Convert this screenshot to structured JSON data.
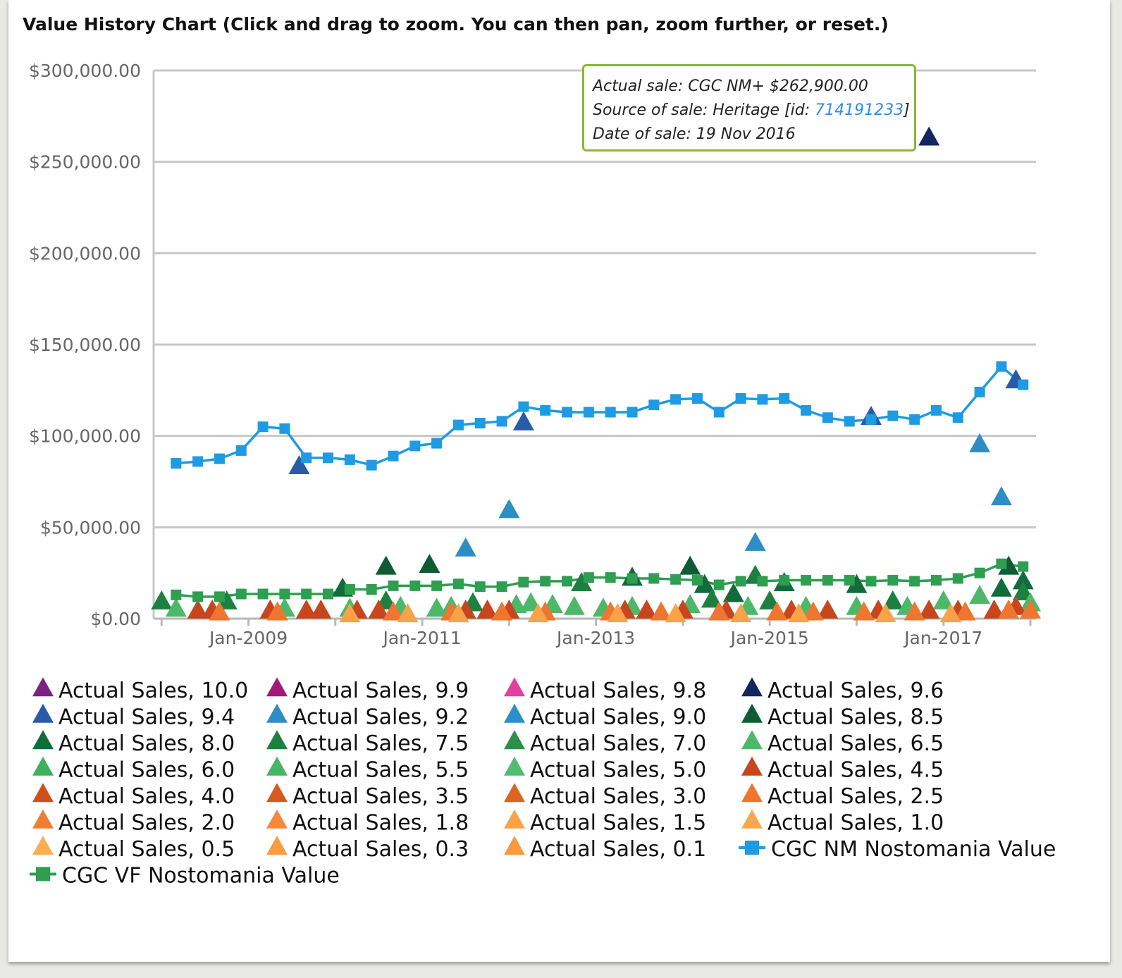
{
  "title": "Value History Chart (Click and drag to zoom. You can then pan, zoom further, or reset.)",
  "tooltip": {
    "line1": "Actual sale: CGC NM+ $262,900.00",
    "line2_prefix": "Source of sale: Heritage [id: ",
    "line2_id": "714191233",
    "line2_suffix": "]",
    "line3": "Date of sale: 19 Nov 2016",
    "border_color": "#8ab833"
  },
  "chart_data": {
    "type": "scatter",
    "x_unit": "date",
    "y_unit": "USD",
    "ylim": [
      0,
      300000
    ],
    "xlim": [
      "2007-12",
      "2018-01"
    ],
    "yticks": [
      "$0.00",
      "$50,000.00",
      "$100,000.00",
      "$150,000.00",
      "$200,000.00",
      "$250,000.00",
      "$300,000.00"
    ],
    "ytick_values": [
      0,
      50000,
      100000,
      150000,
      200000,
      250000,
      300000
    ],
    "xticks": [
      "Jan-2009",
      "Jan-2011",
      "Jan-2013",
      "Jan-2015",
      "Jan-2017"
    ],
    "xtick_values": [
      "2009-01",
      "2011-01",
      "2013-01",
      "2015-01",
      "2017-01"
    ],
    "grid": true,
    "legend_position": "bottom",
    "series": [
      {
        "name": "Actual Sales, 10.0",
        "marker": "triangle",
        "color": "#7b2183",
        "points": []
      },
      {
        "name": "Actual Sales, 9.9",
        "marker": "triangle",
        "color": "#a3197a",
        "points": []
      },
      {
        "name": "Actual Sales, 9.8",
        "marker": "triangle",
        "color": "#e040a0",
        "points": []
      },
      {
        "name": "Actual Sales, 9.6",
        "marker": "triangle",
        "color": "#12275f",
        "points": [
          [
            "2016-11",
            262900
          ]
        ]
      },
      {
        "name": "Actual Sales, 9.4",
        "marker": "triangle",
        "color": "#2a5ba8",
        "points": [
          [
            "2009-08",
            83000
          ],
          [
            "2012-03",
            107000
          ],
          [
            "2016-03",
            110000
          ],
          [
            "2017-11",
            130000
          ]
        ]
      },
      {
        "name": "Actual Sales, 9.2",
        "marker": "triangle",
        "color": "#2e8ec4",
        "points": [
          [
            "2011-07",
            38000
          ],
          [
            "2012-01",
            59000
          ],
          [
            "2014-11",
            41000
          ],
          [
            "2017-06",
            95000
          ],
          [
            "2017-09",
            66000
          ]
        ]
      },
      {
        "name": "Actual Sales, 9.0",
        "marker": "triangle",
        "color": "#2a90c8",
        "points": []
      },
      {
        "name": "Actual Sales, 8.5",
        "marker": "triangle",
        "color": "#0f5c34",
        "points": [
          [
            "2010-08",
            28000
          ],
          [
            "2011-02",
            29000
          ],
          [
            "2014-02",
            28000
          ],
          [
            "2017-10",
            28000
          ]
        ]
      },
      {
        "name": "Actual Sales, 8.0",
        "marker": "triangle",
        "color": "#126b3a",
        "points": [
          [
            "2010-02",
            16000
          ],
          [
            "2013-06",
            22000
          ],
          [
            "2014-04",
            18000
          ],
          [
            "2014-08",
            13000
          ],
          [
            "2015-03",
            19000
          ],
          [
            "2016-01",
            18000
          ],
          [
            "2017-09",
            16000
          ],
          [
            "2017-12",
            20000
          ]
        ]
      },
      {
        "name": "Actual Sales, 7.5",
        "marker": "triangle",
        "color": "#1e8040",
        "points": [
          [
            "2008-01",
            9000
          ],
          [
            "2008-10",
            9000
          ],
          [
            "2010-08",
            9000
          ],
          [
            "2011-08",
            8000
          ],
          [
            "2012-11",
            19000
          ],
          [
            "2014-05",
            10000
          ],
          [
            "2014-11",
            23000
          ],
          [
            "2015-01",
            9000
          ],
          [
            "2016-06",
            9000
          ],
          [
            "2017-12",
            14000
          ]
        ]
      },
      {
        "name": "Actual Sales, 7.0",
        "marker": "triangle",
        "color": "#2b8f4a",
        "points": []
      },
      {
        "name": "Actual Sales, 6.5",
        "marker": "triangle",
        "color": "#4db86a",
        "points": [
          [
            "2008-03",
            5000
          ],
          [
            "2009-06",
            5000
          ],
          [
            "2010-03",
            5000
          ],
          [
            "2010-10",
            6000
          ],
          [
            "2011-03",
            5000
          ],
          [
            "2011-05",
            6000
          ],
          [
            "2012-02",
            7000
          ],
          [
            "2012-04",
            8000
          ],
          [
            "2012-07",
            7000
          ],
          [
            "2012-10",
            6000
          ],
          [
            "2013-02",
            5000
          ],
          [
            "2013-06",
            6000
          ],
          [
            "2014-02",
            7000
          ],
          [
            "2014-10",
            6000
          ],
          [
            "2015-06",
            6000
          ],
          [
            "2016-01",
            6000
          ],
          [
            "2016-08",
            6000
          ],
          [
            "2017-01",
            9000
          ],
          [
            "2017-06",
            12000
          ],
          [
            "2018-01",
            8000
          ]
        ]
      },
      {
        "name": "Actual Sales, 6.0",
        "marker": "triangle",
        "color": "#3fb05e",
        "points": []
      },
      {
        "name": "Actual Sales, 5.5",
        "marker": "triangle",
        "color": "#47b566",
        "points": []
      },
      {
        "name": "Actual Sales, 5.0",
        "marker": "triangle",
        "color": "#52bc70",
        "points": []
      },
      {
        "name": "Actual Sales, 4.5",
        "marker": "triangle",
        "color": "#c8461d",
        "points": [
          [
            "2008-06",
            4000
          ],
          [
            "2008-08",
            4000
          ],
          [
            "2009-04",
            4000
          ],
          [
            "2009-09",
            4000
          ],
          [
            "2009-11",
            4000
          ],
          [
            "2010-04",
            4000
          ],
          [
            "2010-07",
            4000
          ],
          [
            "2011-07",
            4000
          ],
          [
            "2011-10",
            4000
          ],
          [
            "2012-01",
            4000
          ],
          [
            "2013-05",
            4000
          ],
          [
            "2013-08",
            4000
          ],
          [
            "2014-01",
            4000
          ],
          [
            "2014-07",
            4000
          ],
          [
            "2015-04",
            4000
          ],
          [
            "2015-09",
            4000
          ],
          [
            "2016-04",
            4000
          ],
          [
            "2016-11",
            4000
          ],
          [
            "2017-03",
            4000
          ],
          [
            "2017-08",
            4000
          ],
          [
            "2017-11",
            6000
          ]
        ]
      },
      {
        "name": "Actual Sales, 4.0",
        "marker": "triangle",
        "color": "#d04f1c",
        "points": []
      },
      {
        "name": "Actual Sales, 3.5",
        "marker": "triangle",
        "color": "#d65a1d",
        "points": []
      },
      {
        "name": "Actual Sales, 3.0",
        "marker": "triangle",
        "color": "#dc6420",
        "points": []
      },
      {
        "name": "Actual Sales, 2.5",
        "marker": "triangle",
        "color": "#ef7630",
        "points": [
          [
            "2008-09",
            3000
          ],
          [
            "2009-05",
            3000
          ],
          [
            "2010-09",
            3000
          ],
          [
            "2011-05",
            3000
          ],
          [
            "2011-12",
            3000
          ],
          [
            "2012-06",
            3000
          ],
          [
            "2013-03",
            3000
          ],
          [
            "2013-10",
            3000
          ],
          [
            "2014-06",
            3000
          ],
          [
            "2015-02",
            3000
          ],
          [
            "2015-07",
            3000
          ],
          [
            "2016-02",
            3000
          ],
          [
            "2016-09",
            3000
          ],
          [
            "2017-04",
            3000
          ],
          [
            "2017-10",
            4000
          ],
          [
            "2018-01",
            4000
          ]
        ]
      },
      {
        "name": "Actual Sales, 2.0",
        "marker": "triangle",
        "color": "#f07e34",
        "points": []
      },
      {
        "name": "Actual Sales, 1.8",
        "marker": "triangle",
        "color": "#f58a3c",
        "points": []
      },
      {
        "name": "Actual Sales, 1.5",
        "marker": "triangle",
        "color": "#f8a24a",
        "points": [
          [
            "2010-03",
            2000
          ],
          [
            "2010-11",
            2000
          ],
          [
            "2011-06",
            2000
          ],
          [
            "2012-05",
            2000
          ],
          [
            "2013-04",
            2000
          ],
          [
            "2013-12",
            2000
          ],
          [
            "2014-09",
            2000
          ],
          [
            "2015-05",
            2000
          ],
          [
            "2016-05",
            2000
          ],
          [
            "2017-02",
            2000
          ]
        ]
      },
      {
        "name": "Actual Sales, 1.0",
        "marker": "triangle",
        "color": "#f9a84e",
        "points": []
      },
      {
        "name": "Actual Sales, 0.5",
        "marker": "triangle",
        "color": "#fbae52",
        "points": []
      },
      {
        "name": "Actual Sales, 0.3",
        "marker": "triangle",
        "color": "#f89c45",
        "points": []
      },
      {
        "name": "Actual Sales, 0.1",
        "marker": "triangle",
        "color": "#f79a40",
        "points": []
      },
      {
        "name": "CGC NM Nostomania Value",
        "marker": "square-line",
        "color": "#1e9be3",
        "points": [
          [
            "2008-03",
            85000
          ],
          [
            "2008-06",
            86000
          ],
          [
            "2008-09",
            87500
          ],
          [
            "2008-12",
            92000
          ],
          [
            "2009-03",
            105000
          ],
          [
            "2009-06",
            104000
          ],
          [
            "2009-09",
            88000
          ],
          [
            "2009-12",
            88000
          ],
          [
            "2010-03",
            87000
          ],
          [
            "2010-06",
            84000
          ],
          [
            "2010-09",
            89000
          ],
          [
            "2010-12",
            94500
          ],
          [
            "2011-03",
            96000
          ],
          [
            "2011-06",
            106000
          ],
          [
            "2011-09",
            107000
          ],
          [
            "2011-12",
            108000
          ],
          [
            "2012-03",
            116000
          ],
          [
            "2012-06",
            114000
          ],
          [
            "2012-09",
            113000
          ],
          [
            "2012-12",
            113000
          ],
          [
            "2013-03",
            113000
          ],
          [
            "2013-06",
            113000
          ],
          [
            "2013-09",
            117000
          ],
          [
            "2013-12",
            120000
          ],
          [
            "2014-03",
            120500
          ],
          [
            "2014-06",
            113000
          ],
          [
            "2014-09",
            120500
          ],
          [
            "2014-12",
            120000
          ],
          [
            "2015-03",
            120500
          ],
          [
            "2015-06",
            114000
          ],
          [
            "2015-09",
            110000
          ],
          [
            "2015-12",
            108000
          ],
          [
            "2016-03",
            109000
          ],
          [
            "2016-06",
            111000
          ],
          [
            "2016-09",
            109000
          ],
          [
            "2016-12",
            114000
          ],
          [
            "2017-03",
            110000
          ],
          [
            "2017-06",
            124000
          ],
          [
            "2017-09",
            138000
          ],
          [
            "2017-12",
            128000
          ]
        ]
      },
      {
        "name": "CGC VF Nostomania Value",
        "marker": "square-line",
        "color": "#2e9e50",
        "points": [
          [
            "2008-03",
            13000
          ],
          [
            "2008-06",
            12000
          ],
          [
            "2008-09",
            12000
          ],
          [
            "2008-12",
            13500
          ],
          [
            "2009-03",
            13500
          ],
          [
            "2009-06",
            13500
          ],
          [
            "2009-09",
            13500
          ],
          [
            "2009-12",
            13500
          ],
          [
            "2010-03",
            16000
          ],
          [
            "2010-06",
            16000
          ],
          [
            "2010-09",
            18000
          ],
          [
            "2010-12",
            18000
          ],
          [
            "2011-03",
            18000
          ],
          [
            "2011-06",
            19000
          ],
          [
            "2011-09",
            17500
          ],
          [
            "2011-12",
            17500
          ],
          [
            "2012-03",
            20000
          ],
          [
            "2012-06",
            20500
          ],
          [
            "2012-09",
            20500
          ],
          [
            "2012-12",
            22500
          ],
          [
            "2013-03",
            22500
          ],
          [
            "2013-06",
            22000
          ],
          [
            "2013-09",
            22000
          ],
          [
            "2013-12",
            21500
          ],
          [
            "2014-03",
            21000
          ],
          [
            "2014-06",
            18500
          ],
          [
            "2014-09",
            20500
          ],
          [
            "2014-12",
            20500
          ],
          [
            "2015-03",
            21000
          ],
          [
            "2015-06",
            21000
          ],
          [
            "2015-09",
            21000
          ],
          [
            "2015-12",
            21000
          ],
          [
            "2016-03",
            20500
          ],
          [
            "2016-06",
            21000
          ],
          [
            "2016-09",
            20500
          ],
          [
            "2016-12",
            21000
          ],
          [
            "2017-03",
            22000
          ],
          [
            "2017-06",
            25000
          ],
          [
            "2017-09",
            30000
          ],
          [
            "2017-12",
            28500
          ]
        ]
      }
    ]
  }
}
